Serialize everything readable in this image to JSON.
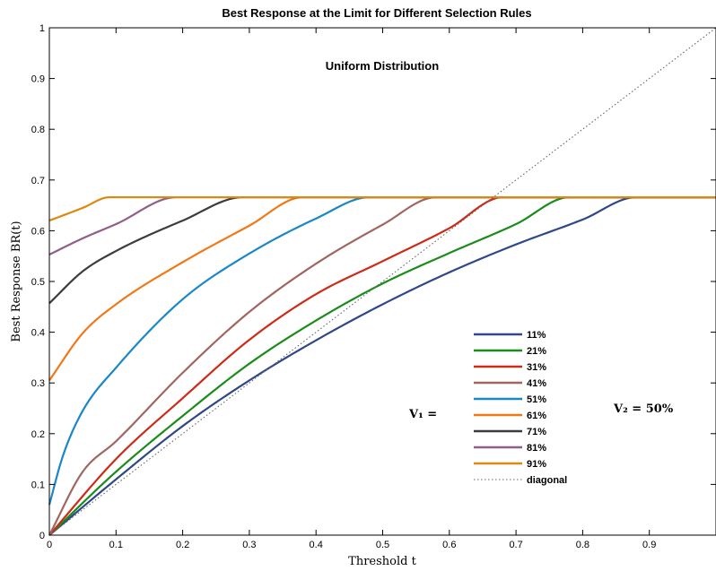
{
  "chart_data": {
    "type": "line",
    "title": "Best Response at the Limit for Different Selection Rules",
    "subtitle": "Uniform Distribution",
    "xlabel": "Threshold t",
    "ylabel": "Best Response BR(t)",
    "xlim": [
      0,
      1
    ],
    "ylim": [
      0,
      1
    ],
    "x_ticks": [
      "0",
      "0.1",
      "0.2",
      "0.3",
      "0.4",
      "0.5",
      "0.6",
      "0.7",
      "0.8",
      "0.9"
    ],
    "y_ticks": [
      "0",
      "0.1",
      "0.2",
      "0.3",
      "0.4",
      "0.5",
      "0.6",
      "0.7",
      "0.8",
      "0.9",
      "1"
    ],
    "grid": false,
    "legend_position": "lower-right",
    "annotations": {
      "v1": "V₁ =",
      "v2": "V₂ = 50%"
    },
    "series": [
      {
        "name": "11%",
        "color": "#2f4889",
        "x": [
          0,
          0.1,
          0.2,
          0.3,
          0.4,
          0.5,
          0.6,
          0.7,
          0.8,
          0.88,
          1.0
        ],
        "y": [
          0,
          0.11,
          0.215,
          0.305,
          0.384,
          0.455,
          0.518,
          0.573,
          0.622,
          0.666,
          0.666
        ]
      },
      {
        "name": "21%",
        "color": "#1a8c1a",
        "x": [
          0,
          0.1,
          0.2,
          0.3,
          0.4,
          0.5,
          0.6,
          0.7,
          0.78,
          1.0
        ],
        "y": [
          0,
          0.125,
          0.235,
          0.338,
          0.423,
          0.496,
          0.556,
          0.613,
          0.666,
          0.666
        ]
      },
      {
        "name": "31%",
        "color": "#cc2b17",
        "x": [
          0,
          0.1,
          0.2,
          0.3,
          0.4,
          0.5,
          0.6,
          0.68,
          1.0
        ],
        "y": [
          0,
          0.15,
          0.27,
          0.385,
          0.475,
          0.54,
          0.605,
          0.666,
          0.666
        ]
      },
      {
        "name": "41%",
        "color": "#a0665f",
        "x": [
          0,
          0.05,
          0.1,
          0.2,
          0.3,
          0.4,
          0.5,
          0.58,
          1.0
        ],
        "y": [
          0,
          0.125,
          0.185,
          0.32,
          0.44,
          0.535,
          0.612,
          0.666,
          0.666
        ]
      },
      {
        "name": "51%",
        "color": "#1a87c7",
        "x": [
          0,
          0.02,
          0.05,
          0.1,
          0.2,
          0.3,
          0.4,
          0.48,
          1.0
        ],
        "y": [
          0.06,
          0.155,
          0.245,
          0.33,
          0.465,
          0.555,
          0.624,
          0.666,
          0.666
        ]
      },
      {
        "name": "61%",
        "color": "#f07817",
        "x": [
          0,
          0.05,
          0.1,
          0.2,
          0.3,
          0.38,
          1.0
        ],
        "y": [
          0.305,
          0.398,
          0.455,
          0.538,
          0.61,
          0.666,
          0.666
        ]
      },
      {
        "name": "71%",
        "color": "#3c3c3c",
        "x": [
          0,
          0.05,
          0.1,
          0.2,
          0.29,
          1.0
        ],
        "y": [
          0.457,
          0.52,
          0.56,
          0.62,
          0.666,
          0.666
        ]
      },
      {
        "name": "81%",
        "color": "#8f5e8a",
        "x": [
          0,
          0.05,
          0.1,
          0.19,
          1.0
        ],
        "y": [
          0.553,
          0.585,
          0.613,
          0.666,
          0.666
        ]
      },
      {
        "name": "91%",
        "color": "#db8a0f",
        "x": [
          0,
          0.05,
          0.09,
          1.0
        ],
        "y": [
          0.62,
          0.645,
          0.666,
          0.666
        ]
      },
      {
        "name": "diagonal",
        "color": "#666666",
        "dashed": true,
        "x": [
          0,
          1
        ],
        "y": [
          0,
          1
        ]
      }
    ]
  }
}
